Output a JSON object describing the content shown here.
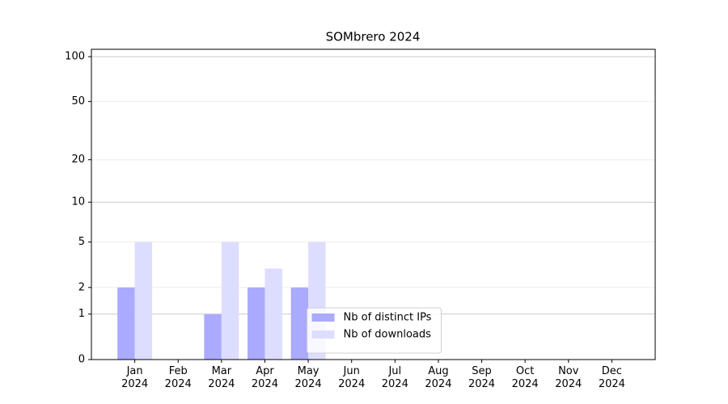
{
  "chart_data": {
    "type": "bar",
    "title": "SOMbrero 2024",
    "categories": [
      "Jan\n2024",
      "Feb\n2024",
      "Mar\n2024",
      "Apr\n2024",
      "May\n2024",
      "Jun\n2024",
      "Jul\n2024",
      "Aug\n2024",
      "Sep\n2024",
      "Oct\n2024",
      "Nov\n2024",
      "Dec\n2024"
    ],
    "series": [
      {
        "name": "Nb of distinct IPs",
        "color": "#aaaaff",
        "values": [
          2,
          0,
          1,
          2,
          2,
          0,
          0,
          0,
          0,
          0,
          0,
          0
        ]
      },
      {
        "name": "Nb of downloads",
        "color": "#ddddff",
        "values": [
          5,
          0,
          5,
          3,
          5,
          0,
          0,
          0,
          0,
          0,
          0,
          0
        ]
      }
    ],
    "yscale": "log1p",
    "ylim": [
      0,
      112
    ],
    "yticks": [
      0,
      1,
      2,
      5,
      10,
      20,
      50,
      100
    ],
    "grid": true,
    "legend": "lower center"
  }
}
